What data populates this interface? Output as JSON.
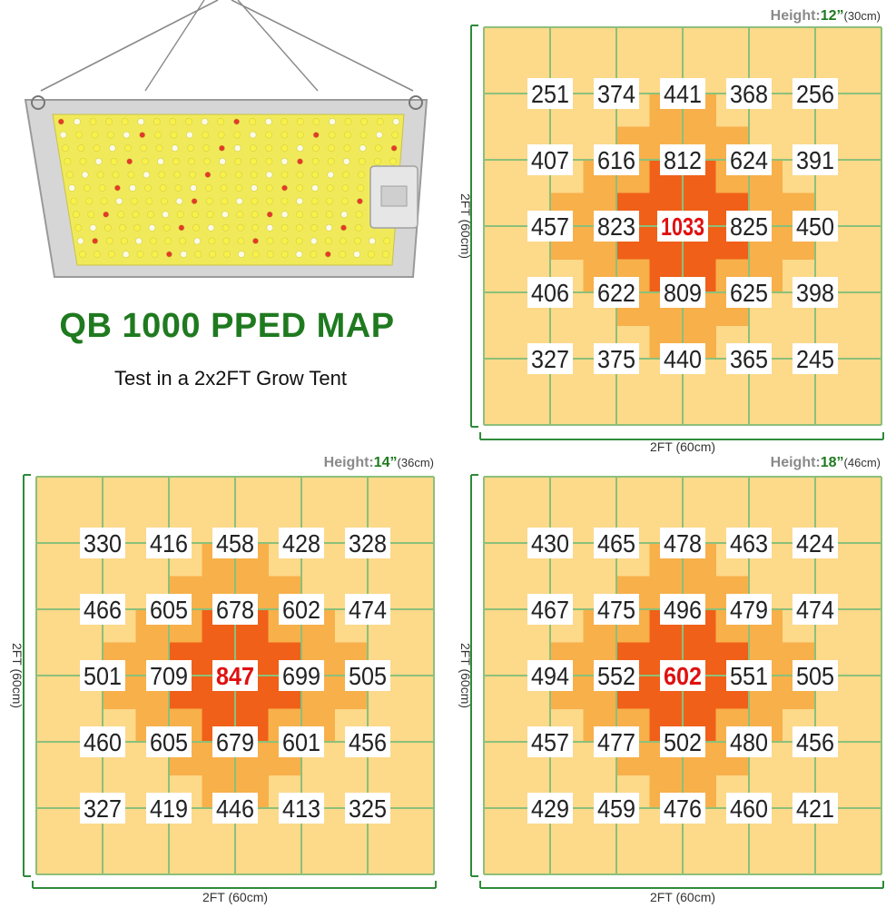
{
  "title": "QB 1000 PPED MAP",
  "subtitle": "Test in a 2x2FT Grow Tent",
  "colors": {
    "title_green": "#1f7a1f",
    "grid_line": "#8cc07a",
    "axis_line": "#2e8b3a",
    "cell_light": "#fdd98a",
    "cell_mid": "#f8b04a",
    "cell_hot": "#f06018",
    "center_value": "#e01010"
  },
  "chart_data": [
    {
      "type": "heatmap",
      "height_label": "Height:",
      "height_value": "12”",
      "height_metric": "(30cm)",
      "xlabel": "2FT (60cm)",
      "ylabel": "2FT (60cm)",
      "grid_cells": [
        6,
        6
      ],
      "values": [
        [
          251,
          374,
          441,
          368,
          256
        ],
        [
          407,
          616,
          812,
          624,
          391
        ],
        [
          457,
          823,
          1033,
          825,
          450
        ],
        [
          406,
          622,
          809,
          625,
          398
        ],
        [
          327,
          375,
          440,
          365,
          245
        ]
      ],
      "highlight_value": 1033
    },
    {
      "type": "heatmap",
      "height_label": "Height:",
      "height_value": "14”",
      "height_metric": "(36cm)",
      "xlabel": "2FT (60cm)",
      "ylabel": "2FT (60cm)",
      "grid_cells": [
        6,
        6
      ],
      "values": [
        [
          330,
          416,
          458,
          428,
          328
        ],
        [
          466,
          605,
          678,
          602,
          474
        ],
        [
          501,
          709,
          847,
          699,
          505
        ],
        [
          460,
          605,
          679,
          601,
          456
        ],
        [
          327,
          419,
          446,
          413,
          325
        ]
      ],
      "highlight_value": 847
    },
    {
      "type": "heatmap",
      "height_label": "Height:",
      "height_value": "18”",
      "height_metric": "(46cm)",
      "xlabel": "2FT (60cm)",
      "ylabel": "2FT (60cm)",
      "grid_cells": [
        6,
        6
      ],
      "values": [
        [
          430,
          465,
          478,
          463,
          424
        ],
        [
          467,
          475,
          496,
          479,
          474
        ],
        [
          494,
          552,
          602,
          551,
          505
        ],
        [
          457,
          477,
          502,
          480,
          456
        ],
        [
          429,
          459,
          476,
          460,
          421
        ]
      ],
      "highlight_value": 602
    }
  ]
}
